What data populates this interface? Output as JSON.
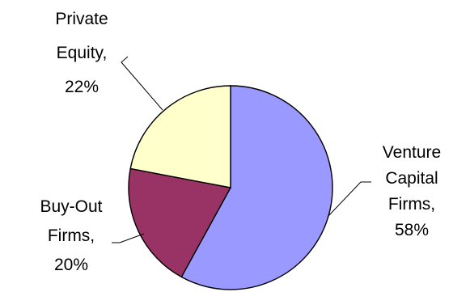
{
  "chart_data": {
    "type": "pie",
    "title": "",
    "slices": [
      {
        "label_lines": [
          "Venture",
          "Capital",
          "Firms,",
          "58%"
        ],
        "category": "Venture Capital Firms",
        "value": 58,
        "color": "#9999ff"
      },
      {
        "label_lines": [
          "Buy-Out",
          "Firms,",
          "20%"
        ],
        "category": "Buy-Out Firms",
        "value": 20,
        "color": "#993366"
      },
      {
        "label_lines": [
          "Private",
          "Equity,",
          "22%"
        ],
        "category": "Private Equity",
        "value": 22,
        "color": "#ffffcc"
      }
    ],
    "legend": "none",
    "data_labels": "outside-with-leader-lines"
  }
}
